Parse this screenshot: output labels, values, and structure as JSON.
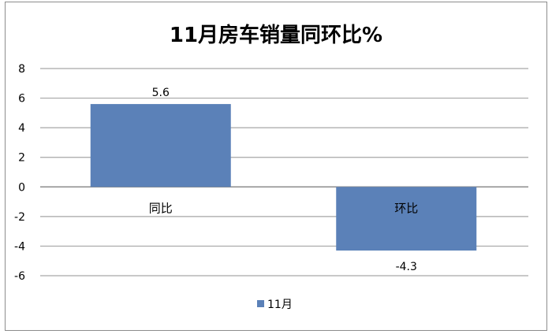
{
  "chart_data": {
    "type": "bar",
    "title": "11月房车销量同环比%",
    "categories": [
      "同比",
      "环比"
    ],
    "series": [
      {
        "name": "11月",
        "values": [
          5.6,
          -4.3
        ],
        "color": "#5b81b8"
      }
    ],
    "data_labels": [
      "5.6",
      "-4.3"
    ],
    "ylim": [
      -6,
      8
    ],
    "yticks": [
      8,
      6,
      4,
      2,
      0,
      -2,
      -4,
      -6
    ],
    "ytick_labels": [
      "8",
      "6",
      "4",
      "2",
      "0",
      "-2",
      "-4",
      "-6"
    ],
    "grid": true,
    "legend": "bottom",
    "xlabel": "",
    "ylabel": ""
  }
}
